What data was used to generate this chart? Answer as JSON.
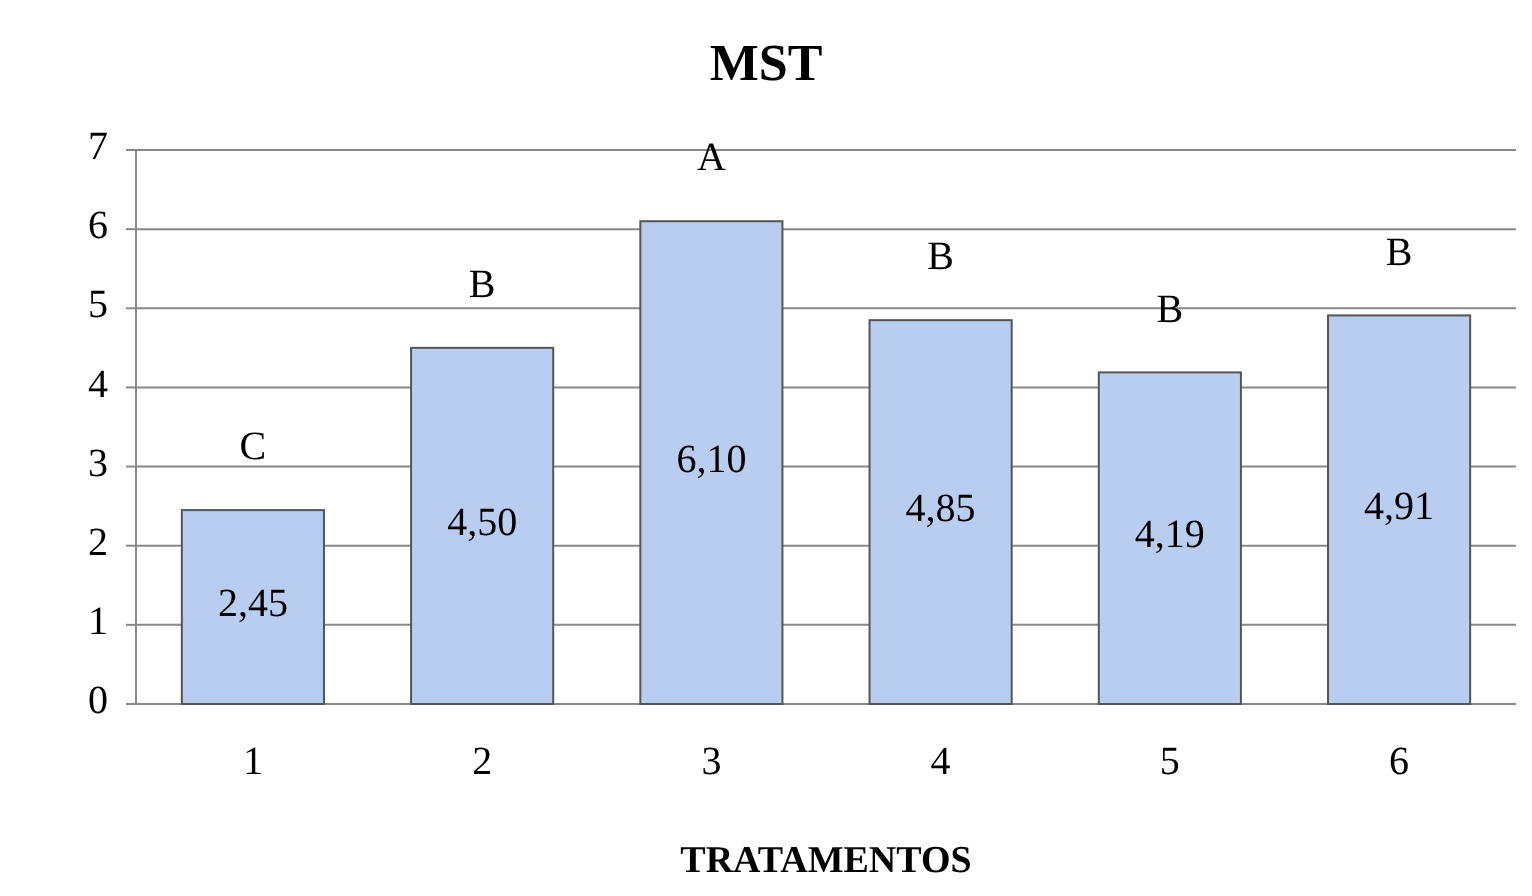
{
  "chart_data": {
    "type": "bar",
    "title": "MST",
    "xlabel": "TRATAMENTOS",
    "categories": [
      "1",
      "2",
      "3",
      "4",
      "5",
      "6"
    ],
    "values": [
      2.45,
      4.5,
      6.1,
      4.85,
      4.19,
      4.91
    ],
    "value_labels": [
      "2,45",
      "4,50",
      "6,10",
      "4,85",
      "4,19",
      "4,91"
    ],
    "color": "#b8cdf0",
    "ylim": [
      0,
      7
    ],
    "yticks": [
      0,
      1,
      2,
      3,
      4,
      5,
      6,
      7
    ],
    "grid": "y",
    "annotations": [
      "C",
      "B",
      "A",
      "B",
      "B",
      "B"
    ]
  }
}
